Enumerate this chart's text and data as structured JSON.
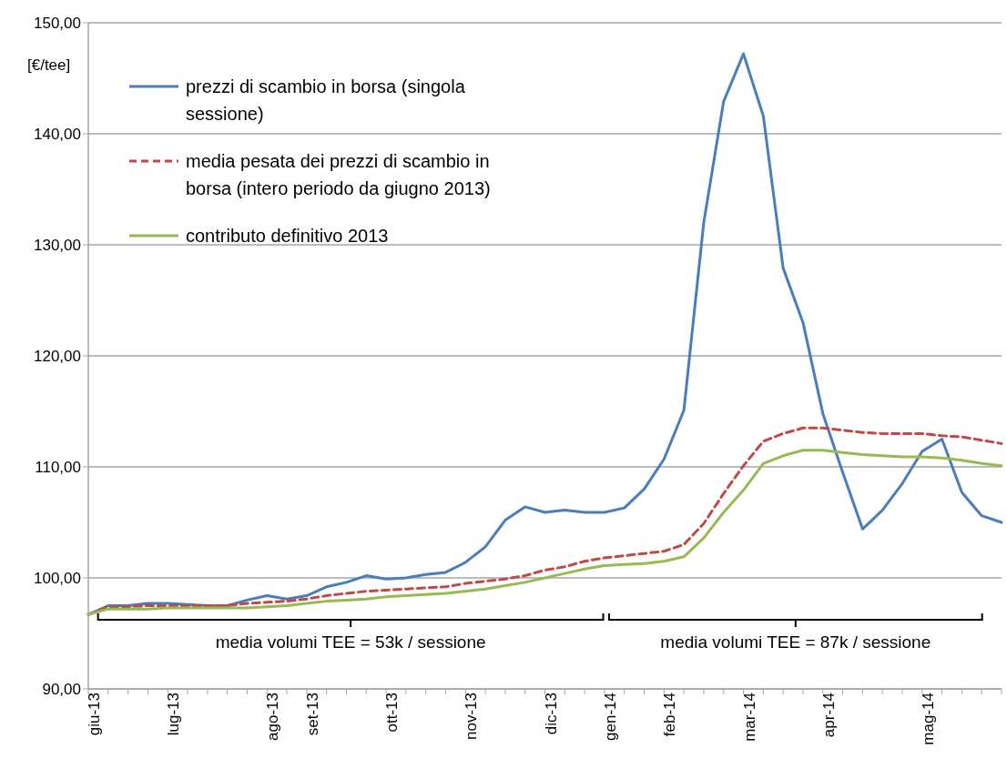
{
  "chart_data": {
    "type": "line",
    "ylabel": "[€/tee]",
    "categories": [
      "giu-13",
      null,
      null,
      null,
      "lug-13",
      null,
      null,
      null,
      null,
      "ago-13",
      null,
      "set-13",
      null,
      null,
      null,
      "ott-13",
      null,
      null,
      null,
      "nov-13",
      null,
      null,
      null,
      "dic-13",
      null,
      null,
      "gen-14",
      null,
      null,
      "feb-14",
      null,
      null,
      null,
      "mar-14",
      null,
      null,
      null,
      "apr-14",
      null,
      null,
      null,
      null,
      "mag-14",
      null,
      null,
      null,
      null
    ],
    "series": [
      {
        "name": "prezzi di scambio in borsa (singola sessione)",
        "color": "#4a7ebb",
        "line_style": "solid",
        "values": [
          96.7,
          97.5,
          97.5,
          97.7,
          97.7,
          97.6,
          97.5,
          97.5,
          98.0,
          98.4,
          98.1,
          98.4,
          99.2,
          99.6,
          100.2,
          99.9,
          100.0,
          100.3,
          100.5,
          101.4,
          102.8,
          105.2,
          106.4,
          105.9,
          106.1,
          105.9,
          105.9,
          106.3,
          108.0,
          110.7,
          115.1,
          132.0,
          142.9,
          147.2,
          141.6,
          127.9,
          123.0,
          114.8,
          109.5,
          104.4,
          106.1,
          108.5,
          111.4,
          112.5,
          107.7,
          105.6,
          105.0
        ]
      },
      {
        "name": "media pesata dei prezzi di scambio in borsa (intero periodo da giugno 2013)",
        "color": "#be4b48",
        "line_style": "dashed",
        "values": [
          96.7,
          97.4,
          97.4,
          97.5,
          97.5,
          97.5,
          97.5,
          97.5,
          97.7,
          97.8,
          97.9,
          98.1,
          98.4,
          98.6,
          98.8,
          98.9,
          99.0,
          99.1,
          99.2,
          99.5,
          99.7,
          99.9,
          100.2,
          100.7,
          101.0,
          101.5,
          101.8,
          102.0,
          102.2,
          102.4,
          103.0,
          104.9,
          107.6,
          110.1,
          112.3,
          113.0,
          113.5,
          113.5,
          113.3,
          113.1,
          113.0,
          113.0,
          113.0,
          112.8,
          112.7,
          112.4,
          112.1
        ]
      },
      {
        "name": "contributo definitivo 2013",
        "color": "#98b954",
        "line_style": "solid",
        "values": [
          96.7,
          97.2,
          97.2,
          97.2,
          97.3,
          97.3,
          97.3,
          97.3,
          97.3,
          97.4,
          97.5,
          97.7,
          97.9,
          98.0,
          98.1,
          98.3,
          98.4,
          98.5,
          98.6,
          98.8,
          99.0,
          99.3,
          99.6,
          100.0,
          100.4,
          100.8,
          101.1,
          101.2,
          101.3,
          101.5,
          101.9,
          103.6,
          105.9,
          107.9,
          110.3,
          111.0,
          111.5,
          111.5,
          111.3,
          111.1,
          111.0,
          110.9,
          110.9,
          110.8,
          110.6,
          110.3,
          110.1
        ]
      }
    ],
    "ylim": [
      90,
      150
    ],
    "yticks": [
      {
        "value": 90,
        "label": "90,00"
      },
      {
        "value": 100,
        "label": "100,00"
      },
      {
        "value": 110,
        "label": "110,00"
      },
      {
        "value": 120,
        "label": "120,00"
      },
      {
        "value": 130,
        "label": "130,00"
      },
      {
        "value": 140,
        "label": "140,00"
      },
      {
        "value": 150,
        "label": "150,00"
      }
    ],
    "grid": "y",
    "legend": "top left",
    "marker": "none",
    "annotations": [
      "media volumi TEE = 53k / sessione",
      "media volumi TEE = 87k / sessione"
    ]
  }
}
